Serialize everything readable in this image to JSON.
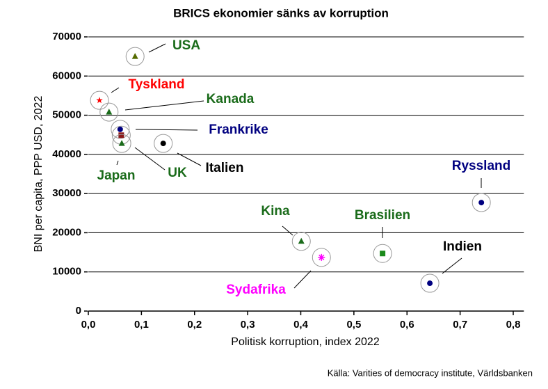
{
  "chart_data": {
    "type": "scatter",
    "title": "BRICS ekonomier sänks av korruption",
    "x_label": "Politisk korruption, index 2022",
    "y_label": "BNI per capita, PPP USD, 2022",
    "source": "Källa: Varities of democracy institute, Världsbanken",
    "xlim": [
      0,
      0.82
    ],
    "ylim": [
      0,
      70000
    ],
    "xticks": [
      {
        "value": 0,
        "label": "0,0"
      },
      {
        "value": 0.1,
        "label": "0,1"
      },
      {
        "value": 0.2,
        "label": "0,2"
      },
      {
        "value": 0.3,
        "label": "0,3"
      },
      {
        "value": 0.4,
        "label": "0,4"
      },
      {
        "value": 0.5,
        "label": "0,5"
      },
      {
        "value": 0.6,
        "label": "0,6"
      },
      {
        "value": 0.7,
        "label": "0,7"
      },
      {
        "value": 0.8,
        "label": "0,8"
      }
    ],
    "yticks": [
      0,
      10000,
      20000,
      30000,
      40000,
      50000,
      60000,
      70000
    ],
    "grid": true,
    "points": [
      {
        "name": "USA",
        "x": 0.088,
        "y": 65000,
        "marker": "triangle",
        "color": "#556b00",
        "label_color": "#1a6b1a"
      },
      {
        "name": "Tyskland",
        "x": 0.021,
        "y": 53800,
        "marker": "star",
        "color": "#ff0000",
        "label_color": "#ff0000"
      },
      {
        "name": "Kanada",
        "x": 0.039,
        "y": 50800,
        "marker": "triangle",
        "color": "#1a6b1a",
        "label_color": "#1a6b1a"
      },
      {
        "name": "Frankrike",
        "x": 0.06,
        "y": 46400,
        "marker": "circle",
        "color": "#000080",
        "label_color": "#000080"
      },
      {
        "name": "UK",
        "x": 0.062,
        "y": 44900,
        "marker": "square",
        "color": "#8b1a1a",
        "label_color": "#1a6b1a"
      },
      {
        "name": "Japan",
        "x": 0.063,
        "y": 42800,
        "marker": "triangle",
        "color": "#1a6b1a",
        "label_color": "#1a6b1a"
      },
      {
        "name": "Italien",
        "x": 0.141,
        "y": 42800,
        "marker": "circle",
        "color": "#000000",
        "label_color": "#000000"
      },
      {
        "name": "Ryssland",
        "x": 0.74,
        "y": 27700,
        "marker": "circle",
        "color": "#000080",
        "label_color": "#000080"
      },
      {
        "name": "Kina",
        "x": 0.401,
        "y": 17800,
        "marker": "triangle",
        "color": "#1a6b1a",
        "label_color": "#1a6b1a"
      },
      {
        "name": "Sydafrika",
        "x": 0.439,
        "y": 13700,
        "marker": "asterisk",
        "color": "#ff00ff",
        "label_color": "#ff00ff"
      },
      {
        "name": "Brasilien",
        "x": 0.554,
        "y": 14700,
        "marker": "square",
        "color": "#1a8a1a",
        "label_color": "#1a6b1a"
      },
      {
        "name": "Indien",
        "x": 0.643,
        "y": 7100,
        "marker": "circle",
        "color": "#000080",
        "label_color": "#000000"
      }
    ]
  }
}
